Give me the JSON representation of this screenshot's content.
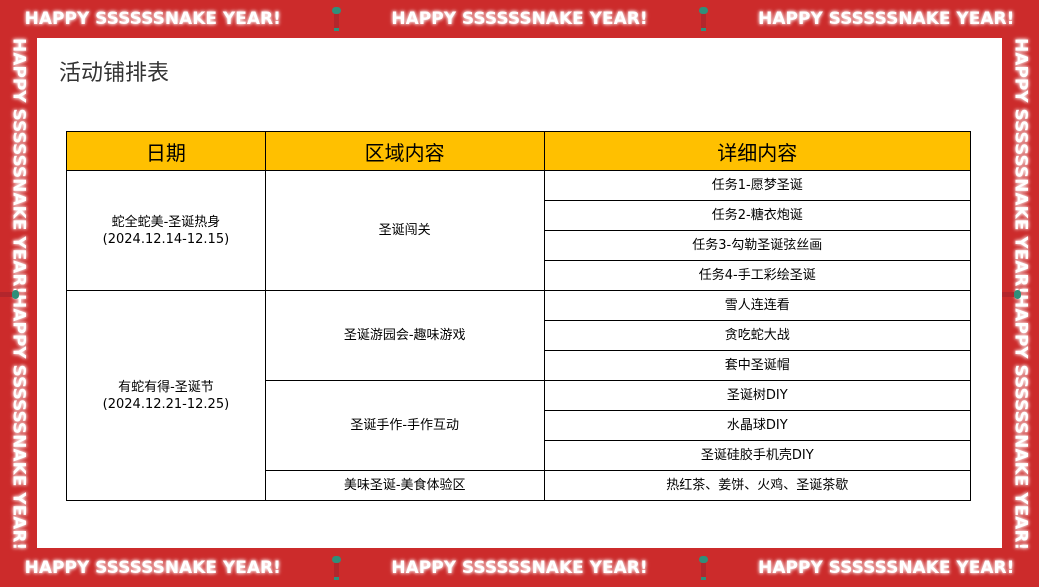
{
  "banner": {
    "text": "HAPPY SSSSSSNAKE YEAR!",
    "icon": "snake-icon",
    "color": "#cc2b2b"
  },
  "page": {
    "title": "活动铺排表"
  },
  "table": {
    "header_color": "#ffc000",
    "headers": [
      "日期",
      "区域内容",
      "详细内容"
    ],
    "groups": [
      {
        "date_name": "蛇全蛇美-圣诞热身",
        "date_range": "(2024.12.14-12.15)",
        "areas": [
          {
            "name": "圣诞闯关",
            "details": [
              "任务1-愿梦圣诞",
              "任务2-糖衣炮诞",
              "任务3-勾勒圣诞弦丝画",
              "任务4-手工彩绘圣诞"
            ]
          }
        ]
      },
      {
        "date_name": "有蛇有得-圣诞节",
        "date_range": "(2024.12.21-12.25)",
        "areas": [
          {
            "name": "圣诞游园会-趣味游戏",
            "details": [
              "雪人连连看",
              "贪吃蛇大战",
              "套中圣诞帽"
            ]
          },
          {
            "name": "圣诞手作-手作互动",
            "details": [
              "圣诞树DIY",
              "水晶球DIY",
              "圣诞硅胶手机壳DIY"
            ]
          },
          {
            "name": "美味圣诞-美食体验区",
            "details": [
              "热红茶、姜饼、火鸡、圣诞茶歇"
            ]
          }
        ]
      }
    ]
  }
}
